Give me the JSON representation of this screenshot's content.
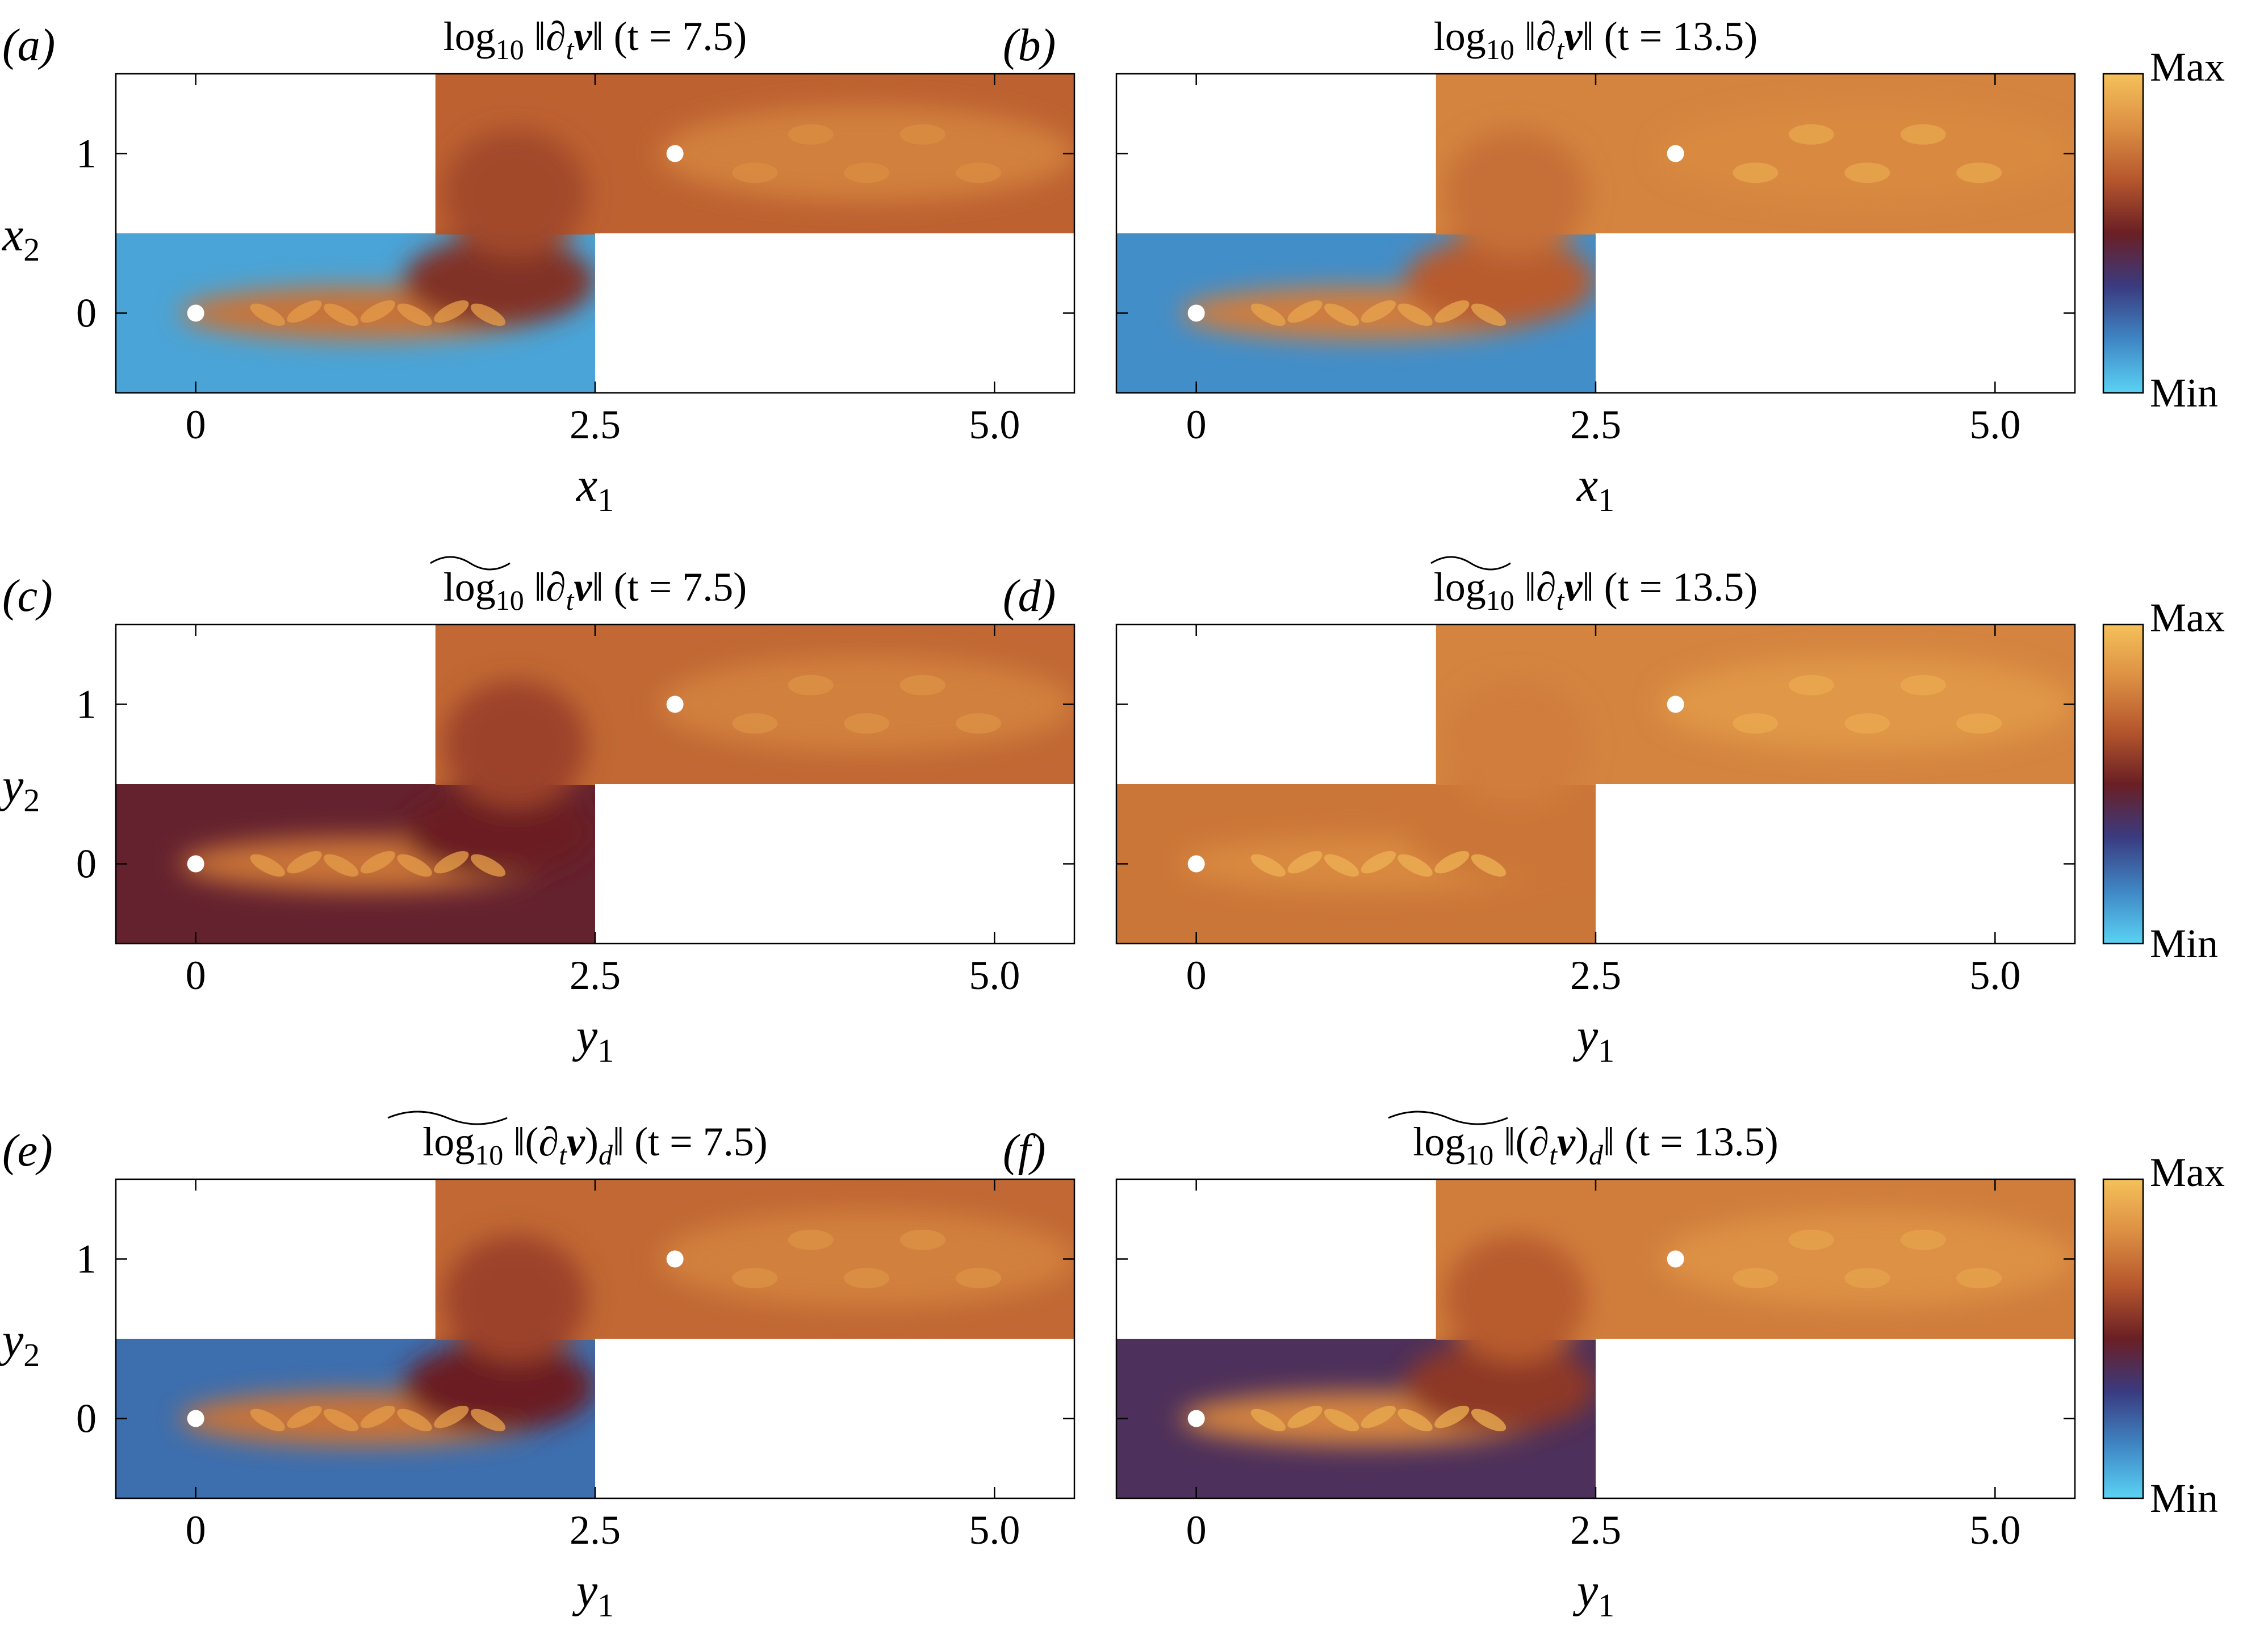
{
  "chart_data": [
    {
      "type": "heatmap",
      "panel_label": "(a)",
      "title": {
        "prefix": "log",
        "sub": "10",
        "op": "‖∂",
        "op_sub": "t",
        "var": "v",
        "close": "‖",
        "time": "(t = 7.5)"
      },
      "xlabel": {
        "base": "x",
        "sub": "1"
      },
      "ylabel": {
        "base": "x",
        "sub": "2"
      },
      "xticks": [
        0,
        2.5,
        5.0
      ],
      "xtick_labels": [
        "0",
        "2.5",
        "5.0"
      ],
      "yticks": [
        0,
        1
      ],
      "ytick_labels": [
        "0",
        "1"
      ],
      "xlim": [
        -0.5,
        5.5
      ],
      "ylim": [
        -0.5,
        1.5
      ],
      "cylinders": [
        [
          0,
          0
        ],
        [
          3,
          1
        ]
      ],
      "domain": {
        "lower_channel": {
          "x": [
            -0.5,
            2.5
          ],
          "y": [
            -0.5,
            0.5
          ]
        },
        "upper_channel": {
          "x": [
            1.5,
            5.5
          ],
          "y": [
            0.5,
            1.5
          ]
        }
      },
      "field_levels": {
        "lower_background": 0.1,
        "wake_near": 0.75,
        "wake_lower": 0.55,
        "upper": 0.7
      }
    },
    {
      "type": "heatmap",
      "panel_label": "(b)",
      "title": {
        "prefix": "log",
        "sub": "10",
        "op": "‖∂",
        "op_sub": "t",
        "var": "v",
        "close": "‖",
        "time": "(t = 13.5)"
      },
      "xlabel": {
        "base": "x",
        "sub": "1"
      },
      "ylabel": null,
      "xticks": [
        0,
        2.5,
        5.0
      ],
      "xtick_labels": [
        "0",
        "2.5",
        "5.0"
      ],
      "yticks": [
        0,
        1
      ],
      "ytick_labels": [],
      "xlim": [
        -0.5,
        5.5
      ],
      "ylim": [
        -0.5,
        1.5
      ],
      "cylinders": [
        [
          0,
          0
        ],
        [
          3,
          1
        ]
      ],
      "domain": {
        "lower_channel": {
          "x": [
            -0.5,
            2.5
          ],
          "y": [
            -0.5,
            0.5
          ]
        },
        "upper_channel": {
          "x": [
            1.5,
            5.5
          ],
          "y": [
            0.5,
            1.5
          ]
        }
      },
      "field_levels": {
        "lower_background": 0.15,
        "wake_near": 0.78,
        "wake_lower": 0.68,
        "upper": 0.8
      }
    },
    {
      "type": "heatmap",
      "panel_label": "(c)",
      "title": {
        "prefix": "log",
        "sub": "10",
        "op": "‖∂",
        "op_sub": "t",
        "var": "v",
        "close": "‖",
        "time": "(t = 7.5)",
        "tilde": true
      },
      "xlabel": {
        "base": "y",
        "sub": "1"
      },
      "ylabel": {
        "base": "y",
        "sub": "2"
      },
      "xticks": [
        0,
        2.5,
        5.0
      ],
      "xtick_labels": [
        "0",
        "2.5",
        "5.0"
      ],
      "yticks": [
        0,
        1
      ],
      "ytick_labels": [
        "0",
        "1"
      ],
      "xlim": [
        -0.5,
        5.5
      ],
      "ylim": [
        -0.5,
        1.5
      ],
      "cylinders": [
        [
          0,
          0
        ],
        [
          3,
          1
        ]
      ],
      "domain": {
        "lower_channel": {
          "x": [
            -0.5,
            2.5
          ],
          "y": [
            -0.5,
            0.5
          ]
        },
        "upper_channel": {
          "x": [
            1.5,
            5.5
          ],
          "y": [
            0.5,
            1.5
          ]
        }
      },
      "field_levels": {
        "lower_background": 0.48,
        "wake_near": 0.75,
        "wake_lower": 0.5,
        "upper": 0.72
      }
    },
    {
      "type": "heatmap",
      "panel_label": "(d)",
      "title": {
        "prefix": "log",
        "sub": "10",
        "op": "‖∂",
        "op_sub": "t",
        "var": "v",
        "close": "‖",
        "time": "(t = 13.5)",
        "tilde": true
      },
      "xlabel": {
        "base": "y",
        "sub": "1"
      },
      "ylabel": null,
      "xticks": [
        0,
        2.5,
        5.0
      ],
      "xtick_labels": [
        "0",
        "2.5",
        "5.0"
      ],
      "yticks": [
        0,
        1
      ],
      "ytick_labels": [],
      "xlim": [
        -0.5,
        5.5
      ],
      "ylim": [
        -0.5,
        1.5
      ],
      "cylinders": [
        [
          0,
          0
        ],
        [
          3,
          1
        ]
      ],
      "domain": {
        "lower_channel": {
          "x": [
            -0.5,
            2.5
          ],
          "y": [
            -0.5,
            0.5
          ]
        },
        "upper_channel": {
          "x": [
            1.5,
            5.5
          ],
          "y": [
            0.5,
            1.5
          ]
        }
      },
      "field_levels": {
        "lower_background": 0.76,
        "wake_near": 0.82,
        "wake_lower": 0.76,
        "upper": 0.8
      }
    },
    {
      "type": "heatmap",
      "panel_label": "(e)",
      "title": {
        "prefix": "log",
        "sub": "10",
        "op": "‖(∂",
        "op_sub": "t",
        "var": "v",
        "close": ")",
        "close_sub": "d",
        "close2": "‖",
        "time": "(t = 7.5)",
        "tilde": true
      },
      "xlabel": {
        "base": "y",
        "sub": "1"
      },
      "ylabel": {
        "base": "y",
        "sub": "2"
      },
      "xticks": [
        0,
        2.5,
        5.0
      ],
      "xtick_labels": [
        "0",
        "2.5",
        "5.0"
      ],
      "yticks": [
        0,
        1
      ],
      "ytick_labels": [
        "0",
        "1"
      ],
      "xlim": [
        -0.5,
        5.5
      ],
      "ylim": [
        -0.5,
        1.5
      ],
      "cylinders": [
        [
          0,
          0
        ],
        [
          3,
          1
        ]
      ],
      "domain": {
        "lower_channel": {
          "x": [
            -0.5,
            2.5
          ],
          "y": [
            -0.5,
            0.5
          ]
        },
        "upper_channel": {
          "x": [
            1.5,
            5.5
          ],
          "y": [
            0.5,
            1.5
          ]
        }
      },
      "field_levels": {
        "lower_background": 0.22,
        "wake_near": 0.75,
        "wake_lower": 0.5,
        "upper": 0.72
      }
    },
    {
      "type": "heatmap",
      "panel_label": "(f)",
      "title": {
        "prefix": "log",
        "sub": "10",
        "op": "‖(∂",
        "op_sub": "t",
        "var": "v",
        "close": ")",
        "close_sub": "d",
        "close2": "‖",
        "time": "(t = 13.5)",
        "tilde": true
      },
      "xlabel": {
        "base": "y",
        "sub": "1"
      },
      "ylabel": null,
      "xticks": [
        0,
        2.5,
        5.0
      ],
      "xtick_labels": [
        "0",
        "2.5",
        "5.0"
      ],
      "yticks": [
        0,
        1
      ],
      "ytick_labels": [],
      "xlim": [
        -0.5,
        5.5
      ],
      "ylim": [
        -0.5,
        1.5
      ],
      "cylinders": [
        [
          0,
          0
        ],
        [
          3,
          1
        ]
      ],
      "domain": {
        "lower_channel": {
          "x": [
            -0.5,
            2.5
          ],
          "y": [
            -0.5,
            0.5
          ]
        },
        "upper_channel": {
          "x": [
            1.5,
            5.5
          ],
          "y": [
            0.5,
            1.5
          ]
        }
      },
      "field_levels": {
        "lower_background": 0.4,
        "wake_near": 0.8,
        "wake_lower": 0.58,
        "upper": 0.78
      }
    }
  ],
  "colorbar": {
    "max_label": "Max",
    "min_label": "Min",
    "colors": [
      "#5ad2f4",
      "#3f86c4",
      "#3a3b80",
      "#6a1f24",
      "#b5562d",
      "#dc8f43",
      "#f5c15a"
    ]
  }
}
